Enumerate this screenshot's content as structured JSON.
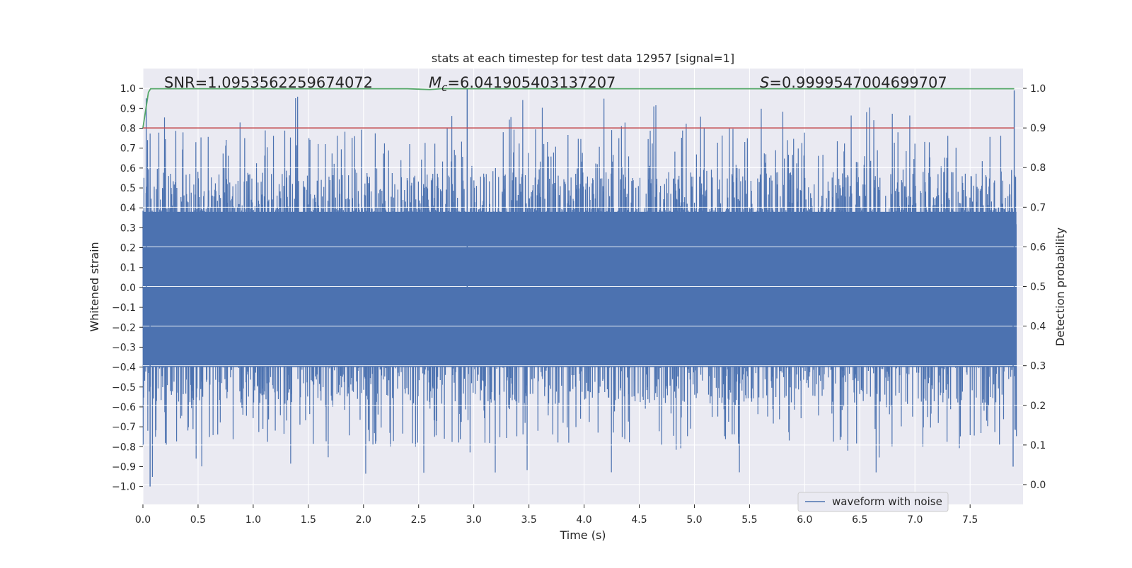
{
  "colors": {
    "plot_background": "#eaeaf2",
    "grid": "#ffffff",
    "waveform": "#4c72b0",
    "probability": "#55a868",
    "threshold": "#c44e52"
  },
  "chart_data": {
    "type": "line",
    "title": "stats at each timestep for test data 12957 [signal=1]",
    "xlabel": "Time (s)",
    "ylabel": "Whitened strain",
    "y2label": "Detection probability",
    "xlim": [
      0.0,
      7.98
    ],
    "ylim": [
      -1.09,
      1.1
    ],
    "y2lim": [
      -0.05,
      1.05
    ],
    "x_ticks": [
      "0.0",
      "0.5",
      "1.0",
      "1.5",
      "2.0",
      "2.5",
      "3.0",
      "3.5",
      "4.0",
      "4.5",
      "5.0",
      "5.5",
      "6.0",
      "6.5",
      "7.0",
      "7.5"
    ],
    "y_ticks": [
      "1.0",
      "0.9",
      "0.8",
      "0.7",
      "0.6",
      "0.5",
      "0.4",
      "0.3",
      "0.2",
      "0.1",
      "0.0",
      "−0.1",
      "−0.2",
      "−0.3",
      "−0.4",
      "−0.5",
      "−0.6",
      "−0.7",
      "−0.8",
      "−0.9",
      "−1.0"
    ],
    "y2_ticks": [
      "1.0",
      "0.9",
      "0.8",
      "0.7",
      "0.6",
      "0.5",
      "0.4",
      "0.3",
      "0.2",
      "0.1",
      "0.0"
    ],
    "grid": true,
    "legend": {
      "position": "lower-right",
      "entries": [
        "waveform with noise"
      ]
    },
    "annotations": {
      "snr": "SNR=1.0953562259674072",
      "mc_symbol": "M",
      "mc_sub": "c",
      "mc_value": "=6.041905403137207",
      "s_symbol": "S",
      "s_value": "=0.9999547004699707"
    },
    "series": [
      {
        "name": "waveform with noise",
        "axis": "left",
        "kind": "noise-band",
        "core_band": [
          -0.4,
          0.38
        ],
        "peak_max": 1.0,
        "peak_min": -1.0
      },
      {
        "axis": "right",
        "kind": "line",
        "x": [
          0.0,
          0.05,
          0.07,
          2.4,
          2.5,
          2.6,
          2.7,
          7.9
        ],
        "y": [
          0.9,
          0.99,
          0.999,
          0.999,
          0.998,
          0.997,
          0.999,
          0.999
        ]
      },
      {
        "axis": "right",
        "kind": "hline",
        "y": 0.9
      }
    ]
  }
}
